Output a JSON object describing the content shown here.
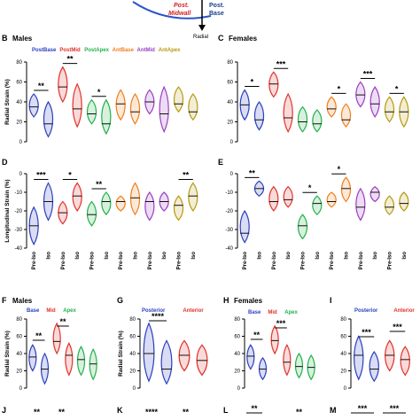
{
  "top_diagram": {
    "labels": [
      "Post. Midwall",
      "Post. Base",
      "Radial"
    ],
    "colors": {
      "midwall": "#d42020",
      "base_label": "#1a3f8a",
      "arc": "#2a55c8"
    }
  },
  "panels": {
    "B": {
      "letter": "B",
      "title": "Males",
      "ylabel": "Radial Strain (%)",
      "yticks": [
        "0",
        "20",
        "40",
        "60",
        "80"
      ],
      "legend": [
        {
          "name": "PostBase",
          "color": "#2a3fbf"
        },
        {
          "name": "PostMid",
          "color": "#e0322b"
        },
        {
          "name": "PostApex",
          "color": "#23b04a"
        },
        {
          "name": "AntBase",
          "color": "#f07f1e"
        },
        {
          "name": "AntMid",
          "color": "#9a3fc0"
        },
        {
          "name": "AntApex",
          "color": "#b59a12"
        }
      ],
      "sig": [
        "**",
        "**",
        "*"
      ]
    },
    "C": {
      "letter": "C",
      "title": "Females",
      "yticks": [
        "0",
        "20",
        "40",
        "60",
        "80"
      ],
      "sig": [
        "*",
        "***",
        "*",
        "***",
        "*"
      ]
    },
    "D": {
      "letter": "D",
      "ylabel": "Longitudinal Strain (%)",
      "yticks": [
        "0",
        "-10",
        "-20",
        "-30",
        "-40"
      ],
      "sig": [
        "***",
        "*",
        "**",
        "**"
      ]
    },
    "E": {
      "letter": "E",
      "yticks": [
        "0",
        "-10",
        "-20",
        "-30",
        "-40"
      ],
      "sig": [
        "**",
        "*",
        "*"
      ]
    },
    "xticks": [
      "Pre-Iso",
      "Iso"
    ],
    "F": {
      "letter": "F",
      "title": "Males",
      "ylabel": "Radial Strain (%)",
      "yticks": [
        "0",
        "20",
        "40",
        "60",
        "80"
      ],
      "legend": [
        {
          "name": "Base",
          "color": "#2a3fbf"
        },
        {
          "name": "Mid",
          "color": "#e0322b"
        },
        {
          "name": "Apex",
          "color": "#23b04a"
        }
      ],
      "sig": [
        "**",
        "**"
      ]
    },
    "G": {
      "letter": "G",
      "ylabel": "Radial Strain (%)",
      "yticks": [
        "0",
        "20",
        "40",
        "60",
        "80"
      ],
      "legend": [
        {
          "name": "Posterior",
          "color": "#2a3fbf"
        },
        {
          "name": "Anterior",
          "color": "#e0322b"
        }
      ],
      "sig": [
        "****"
      ]
    },
    "H": {
      "letter": "H",
      "title": "Females",
      "yticks": [
        "0",
        "20",
        "40",
        "60",
        "80"
      ],
      "legend": [
        {
          "name": "Base",
          "color": "#2a3fbf"
        },
        {
          "name": "Mid",
          "color": "#e0322b"
        },
        {
          "name": "Apex",
          "color": "#23b04a"
        }
      ],
      "sig": [
        "**",
        "***"
      ]
    },
    "I": {
      "letter": "I",
      "yticks": [
        "0",
        "20",
        "40",
        "60",
        "80"
      ],
      "legend": [
        {
          "name": "Posterior",
          "color": "#2a3fbf"
        },
        {
          "name": "Anterior",
          "color": "#e0322b"
        }
      ],
      "sig": [
        "***",
        "***"
      ]
    },
    "J": {
      "letter": "J",
      "sig": [
        "**",
        "**"
      ]
    },
    "K": {
      "letter": "K",
      "sig": [
        "****",
        "**"
      ]
    },
    "L": {
      "letter": "L",
      "sig": [
        "**",
        "**"
      ]
    },
    "M": {
      "letter": "M",
      "sig": [
        "***",
        "***"
      ]
    }
  },
  "chart_data": [
    {
      "type": "violin",
      "panel": "B",
      "title": "Males",
      "ylabel": "Radial Strain (%)",
      "ylim": [
        0,
        80
      ],
      "categories": [
        "PostBase Pre-Iso",
        "PostBase Iso",
        "PostMid Pre-Iso",
        "PostMid Iso",
        "PostApex Pre-Iso",
        "PostApex Iso",
        "AntBase Pre-Iso",
        "AntBase Iso",
        "AntMid Pre-Iso",
        "AntMid Iso",
        "AntApex Pre-Iso",
        "AntApex Iso"
      ],
      "series_colors": [
        "#2a3fbf",
        "#2a3fbf",
        "#e0322b",
        "#e0322b",
        "#23b04a",
        "#23b04a",
        "#f07f1e",
        "#f07f1e",
        "#9a3fc0",
        "#9a3fc0",
        "#b59a12",
        "#b59a12"
      ],
      "ranges": [
        [
          25,
          48
        ],
        [
          5,
          40
        ],
        [
          40,
          75
        ],
        [
          15,
          58
        ],
        [
          18,
          42
        ],
        [
          8,
          42
        ],
        [
          22,
          52
        ],
        [
          18,
          48
        ],
        [
          28,
          52
        ],
        [
          10,
          55
        ],
        [
          30,
          55
        ],
        [
          22,
          48
        ]
      ],
      "medians": [
        35,
        18,
        55,
        33,
        28,
        18,
        38,
        30,
        40,
        28,
        38,
        30
      ],
      "significance": [
        {
          "pair": [
            0,
            1
          ],
          "label": "**"
        },
        {
          "pair": [
            2,
            3
          ],
          "label": "**"
        },
        {
          "pair": [
            4,
            5
          ],
          "label": "*"
        }
      ]
    },
    {
      "type": "violin",
      "panel": "C",
      "title": "Females",
      "ylim": [
        0,
        80
      ],
      "categories": [
        "PostBase Pre-Iso",
        "PostBase Iso",
        "PostMid Pre-Iso",
        "PostMid Iso",
        "PostApex Pre-Iso",
        "PostApex Iso",
        "AntBase Pre-Iso",
        "AntBase Iso",
        "AntMid Pre-Iso",
        "AntMid Iso",
        "AntApex Pre-Iso",
        "AntApex Iso"
      ],
      "series_colors": [
        "#2a3fbf",
        "#2a3fbf",
        "#e0322b",
        "#e0322b",
        "#23b04a",
        "#23b04a",
        "#f07f1e",
        "#f07f1e",
        "#9a3fc0",
        "#9a3fc0",
        "#b59a12",
        "#b59a12"
      ],
      "ranges": [
        [
          22,
          52
        ],
        [
          12,
          40
        ],
        [
          45,
          70
        ],
        [
          10,
          48
        ],
        [
          10,
          35
        ],
        [
          10,
          32
        ],
        [
          25,
          45
        ],
        [
          15,
          38
        ],
        [
          35,
          60
        ],
        [
          25,
          55
        ],
        [
          20,
          45
        ],
        [
          15,
          45
        ]
      ],
      "medians": [
        37,
        22,
        58,
        24,
        20,
        18,
        33,
        22,
        47,
        38,
        30,
        30
      ],
      "significance": [
        {
          "pair": [
            0,
            1
          ],
          "label": "*"
        },
        {
          "pair": [
            2,
            3
          ],
          "label": "***"
        },
        {
          "pair": [
            6,
            7
          ],
          "label": "*"
        },
        {
          "pair": [
            8,
            9
          ],
          "label": "***"
        },
        {
          "pair": [
            10,
            11
          ],
          "label": "*"
        }
      ]
    },
    {
      "type": "violin",
      "panel": "D",
      "ylabel": "Longitudinal Strain (%)",
      "ylim": [
        -40,
        0
      ],
      "categories": [
        "Pre-Iso",
        "Iso",
        "Pre-Iso",
        "Iso",
        "Pre-Iso",
        "Iso",
        "Pre-Iso",
        "Iso",
        "Pre-Iso",
        "Iso",
        "Pre-Iso",
        "Iso"
      ],
      "series_colors": [
        "#2a3fbf",
        "#2a3fbf",
        "#e0322b",
        "#e0322b",
        "#23b04a",
        "#23b04a",
        "#f07f1e",
        "#f07f1e",
        "#9a3fc0",
        "#9a3fc0",
        "#b59a12",
        "#b59a12"
      ],
      "ranges": [
        [
          -38,
          -18
        ],
        [
          -25,
          -5
        ],
        [
          -27,
          -15
        ],
        [
          -20,
          -5
        ],
        [
          -28,
          -15
        ],
        [
          -22,
          -10
        ],
        [
          -20,
          -12
        ],
        [
          -22,
          -5
        ],
        [
          -25,
          -10
        ],
        [
          -20,
          -10
        ],
        [
          -25,
          -12
        ],
        [
          -20,
          -5
        ]
      ],
      "medians": [
        -28,
        -15,
        -21,
        -12,
        -22,
        -15,
        -15,
        -13,
        -15,
        -15,
        -17,
        -12
      ],
      "significance": [
        {
          "pair": [
            0,
            1
          ],
          "label": "***"
        },
        {
          "pair": [
            2,
            3
          ],
          "label": "*"
        },
        {
          "pair": [
            4,
            5
          ],
          "label": "**"
        },
        {
          "pair": [
            10,
            11
          ],
          "label": "**"
        }
      ]
    },
    {
      "type": "violin",
      "panel": "E",
      "ylim": [
        -40,
        0
      ],
      "categories": [
        "Pre-Iso",
        "Iso",
        "Pre-Iso",
        "Iso",
        "Pre-Iso",
        "Iso",
        "Pre-Iso",
        "Iso",
        "Pre-Iso",
        "Iso",
        "Pre-Iso",
        "Iso"
      ],
      "series_colors": [
        "#2a3fbf",
        "#2a3fbf",
        "#e0322b",
        "#e0322b",
        "#23b04a",
        "#23b04a",
        "#f07f1e",
        "#f07f1e",
        "#9a3fc0",
        "#9a3fc0",
        "#b59a12",
        "#b59a12"
      ],
      "ranges": [
        [
          -37,
          -20
        ],
        [
          -12,
          -4
        ],
        [
          -20,
          -7
        ],
        [
          -18,
          -7
        ],
        [
          -35,
          -22
        ],
        [
          -22,
          -12
        ],
        [
          -18,
          -10
        ],
        [
          -15,
          -2
        ],
        [
          -25,
          -8
        ],
        [
          -15,
          -7
        ],
        [
          -22,
          -12
        ],
        [
          -20,
          -10
        ]
      ],
      "medians": [
        -32,
        -8,
        -15,
        -14,
        -28,
        -16,
        -15,
        -8,
        -18,
        -10,
        -18,
        -16
      ],
      "significance": [
        {
          "pair": [
            0,
            1
          ],
          "label": "**"
        },
        {
          "pair": [
            4,
            5
          ],
          "label": "*"
        },
        {
          "pair": [
            6,
            7
          ],
          "label": "*"
        }
      ]
    }
  ]
}
